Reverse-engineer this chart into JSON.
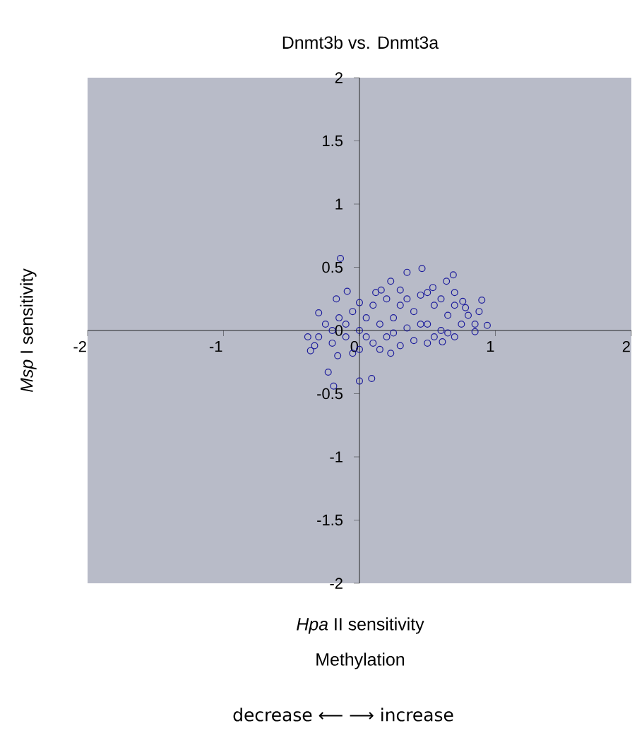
{
  "chart_data": {
    "type": "scatter",
    "title": "Dnmt3b  vs.  Dnmt3a",
    "xlabel": "*Hpa* II sensitivity",
    "ylabel": "*Msp* I sensitivity",
    "annotations": [
      "Methylation",
      "decrease ⟵ ⟶ increase"
    ],
    "xlim": [
      -2,
      2
    ],
    "ylim": [
      -2,
      2
    ],
    "xticks": [
      -2,
      -1,
      0,
      1,
      2
    ],
    "yticks": [
      -2,
      -1.5,
      -1,
      -0.5,
      0,
      0.5,
      1,
      1.5,
      2
    ],
    "marker": "circle",
    "grid": false,
    "series": [
      {
        "color": "#1c1c9c",
        "x": [
          -0.14,
          -0.23,
          -0.19,
          0.09,
          0.0,
          0.35,
          0.46,
          0.69,
          0.64,
          0.9,
          0.94,
          0.23,
          0.16,
          -0.09,
          -0.17,
          -0.3,
          -0.38,
          -0.36,
          -0.16,
          0.23,
          0.61,
          0.85,
          0.76,
          0.54,
          -0.3,
          -0.25,
          -0.2,
          -0.15,
          -0.1,
          -0.05,
          0.0,
          0.0,
          0.05,
          0.1,
          0.1,
          0.15,
          0.2,
          0.2,
          0.25,
          0.3,
          0.3,
          0.35,
          0.4,
          0.4,
          0.45,
          0.5,
          0.5,
          0.55,
          0.6,
          0.65,
          0.7,
          0.7,
          0.75,
          0.8,
          0.85,
          -0.2,
          -0.1,
          0.05,
          0.15,
          0.25,
          0.35,
          0.45,
          0.55,
          0.6,
          0.65,
          -0.33,
          -0.05,
          0.0,
          0.12,
          0.3,
          0.5,
          0.7,
          0.78,
          0.88
        ],
        "values": [
          0.57,
          -0.33,
          -0.44,
          -0.38,
          -0.4,
          0.46,
          0.49,
          0.44,
          0.39,
          0.24,
          0.04,
          0.39,
          0.32,
          0.31,
          0.25,
          0.14,
          -0.05,
          -0.16,
          -0.2,
          -0.18,
          -0.09,
          -0.01,
          0.23,
          0.34,
          -0.05,
          0.05,
          -0.1,
          0.1,
          -0.05,
          0.15,
          0.0,
          -0.15,
          0.1,
          -0.1,
          0.2,
          0.05,
          -0.05,
          0.25,
          0.1,
          -0.12,
          0.2,
          0.02,
          0.15,
          -0.08,
          0.28,
          0.05,
          -0.1,
          0.2,
          0.0,
          0.12,
          -0.05,
          0.2,
          0.05,
          0.12,
          0.05,
          0.0,
          0.05,
          -0.05,
          -0.15,
          -0.02,
          0.25,
          0.05,
          -0.05,
          0.25,
          -0.02,
          -0.12,
          -0.18,
          0.22,
          0.3,
          0.32,
          0.3,
          0.3,
          0.18,
          0.15
        ]
      }
    ]
  }
}
